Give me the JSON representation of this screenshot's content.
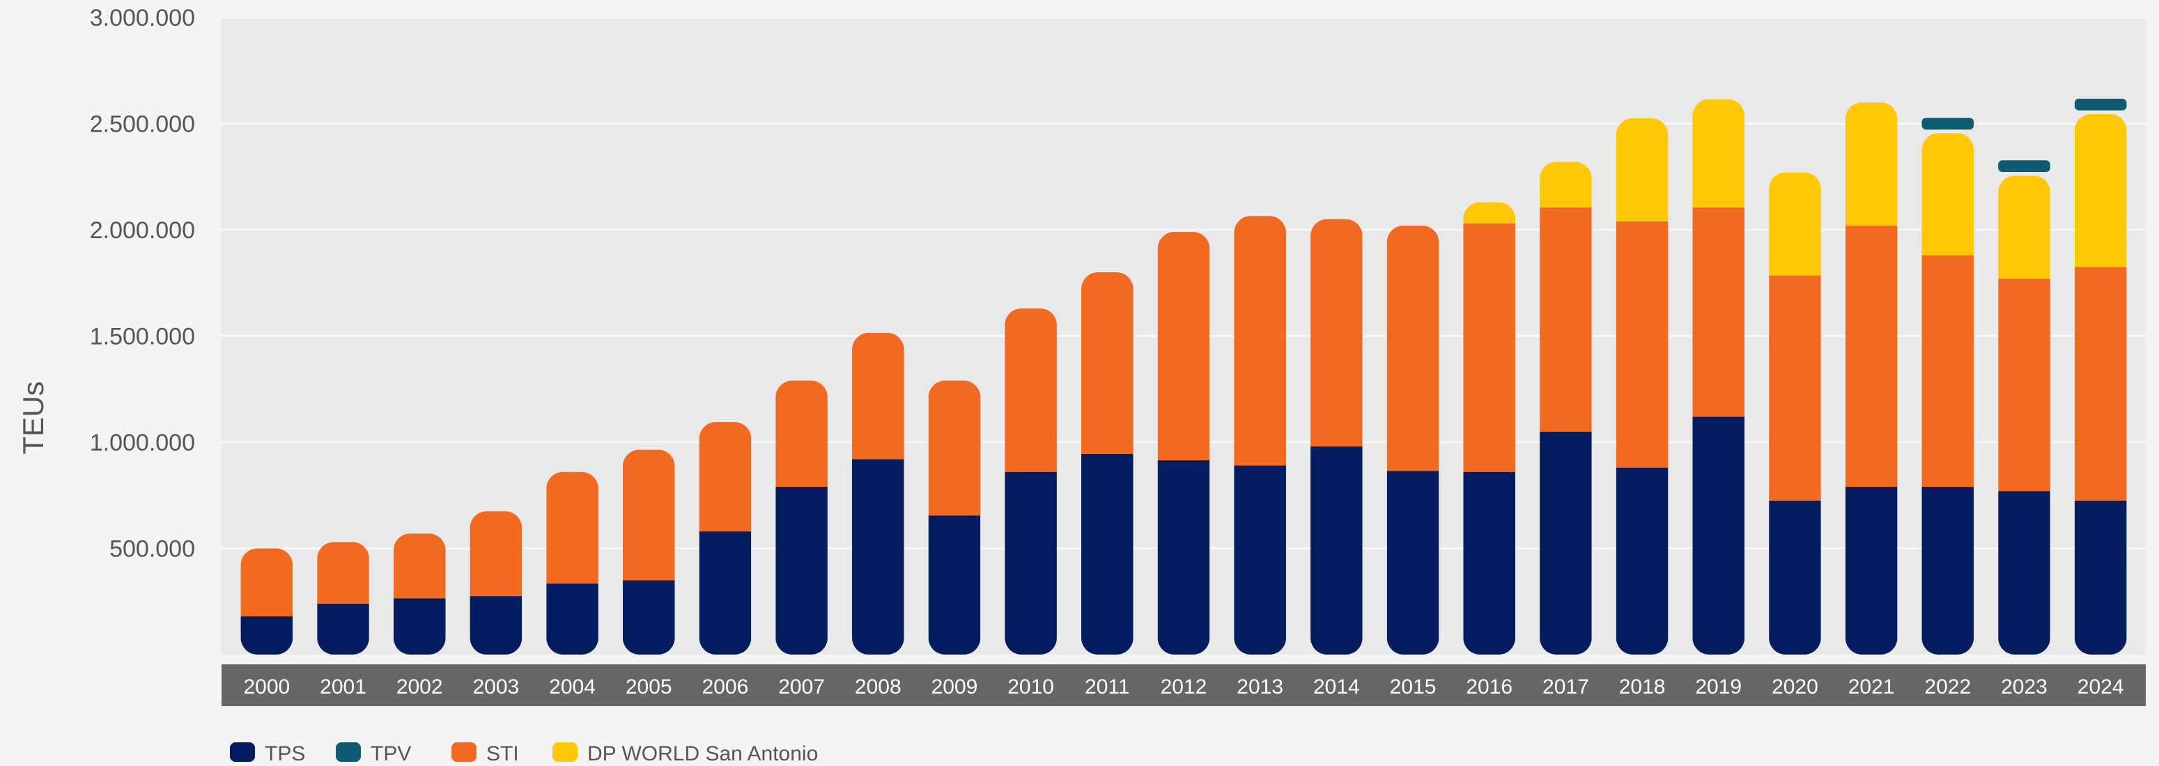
{
  "chart_data": {
    "type": "bar",
    "stacked": true,
    "title": "",
    "xlabel": "",
    "ylabel": "TEUs",
    "ylim": [
      0,
      3000000
    ],
    "y_ticks": [
      500000,
      1000000,
      1500000,
      2000000,
      2500000,
      3000000
    ],
    "y_tick_labels": [
      "500.000",
      "1.000.000",
      "1.500.000",
      "2.000.000",
      "2.500.000",
      "3.000.000"
    ],
    "grid": true,
    "legend_position": "bottom-left",
    "categories": [
      "2000",
      "2001",
      "2002",
      "2003",
      "2004",
      "2005",
      "2006",
      "2007",
      "2008",
      "2009",
      "2010",
      "2011",
      "2012",
      "2013",
      "2014",
      "2015",
      "2016",
      "2017",
      "2018",
      "2019",
      "2020",
      "2021",
      "2022",
      "2023",
      "2024"
    ],
    "series": [
      {
        "name": "TPS",
        "color": "#021c5e",
        "values": [
          180000,
          240000,
          265000,
          275000,
          335000,
          350000,
          580000,
          790000,
          920000,
          655000,
          860000,
          945000,
          915000,
          890000,
          980000,
          865000,
          860000,
          1050000,
          880000,
          1120000,
          725000,
          790000,
          790000,
          770000,
          725000
        ]
      },
      {
        "name": "TPV",
        "color": "#0e5a70",
        "values": [
          0,
          0,
          0,
          0,
          0,
          0,
          0,
          0,
          0,
          0,
          0,
          0,
          0,
          0,
          0,
          0,
          0,
          0,
          0,
          0,
          0,
          0,
          55000,
          55000,
          55000
        ]
      },
      {
        "name": "STI",
        "color": "#f26a22",
        "values": [
          320000,
          290000,
          305000,
          400000,
          525000,
          615000,
          515000,
          500000,
          595000,
          635000,
          770000,
          855000,
          1075000,
          1175000,
          1070000,
          1155000,
          1170000,
          1055000,
          1160000,
          985000,
          1060000,
          1230000,
          1090000,
          1000000,
          1100000
        ]
      },
      {
        "name": "DP WORLD San Antonio",
        "color": "#ffc807",
        "values": [
          0,
          0,
          0,
          0,
          0,
          0,
          0,
          0,
          0,
          0,
          0,
          0,
          0,
          0,
          0,
          0,
          100000,
          215000,
          485000,
          510000,
          485000,
          580000,
          575000,
          485000,
          720000
        ]
      }
    ],
    "stack_order": [
      "TPS",
      "STI",
      "DP WORLD San Antonio",
      "TPV"
    ],
    "plot_background": "#e9e9e9",
    "x_axis_band_color": "#666666"
  }
}
